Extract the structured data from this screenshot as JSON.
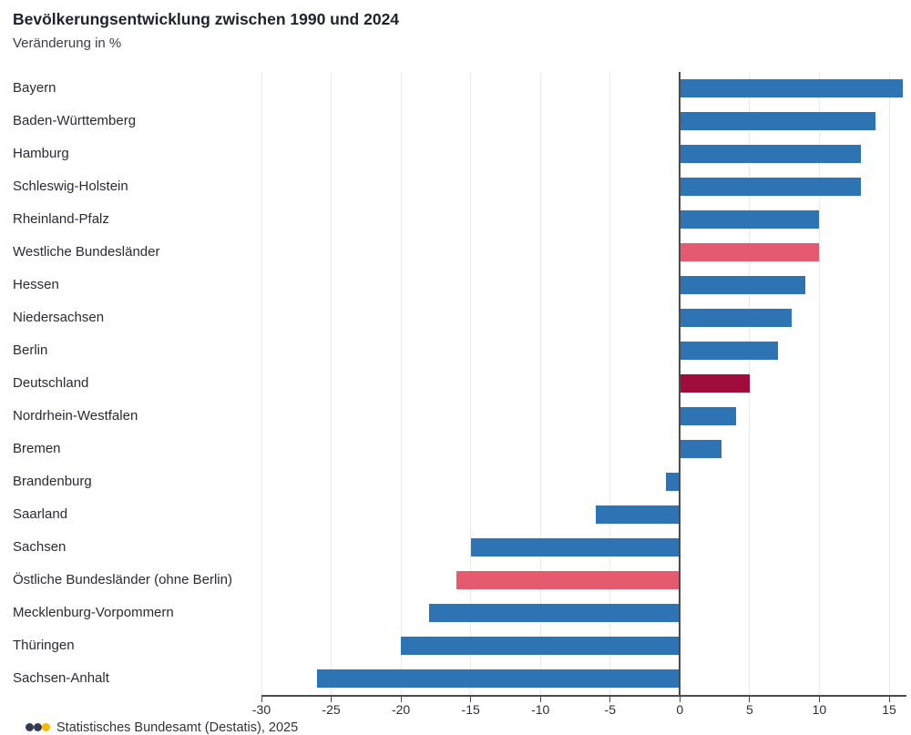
{
  "header": {
    "title": "Bevölkerungsentwicklung zwischen 1990 und 2024",
    "subtitle": "Veränderung in %"
  },
  "chart_data": {
    "type": "bar",
    "orientation": "horizontal",
    "title": "Bevölkerungsentwicklung zwischen 1990 und 2024",
    "subtitle": "Veränderung in %",
    "xlabel": "Veränderung in %",
    "ylabel": "",
    "xlim": [
      -30,
      15
    ],
    "x_ticks": [
      -30,
      -25,
      -20,
      -15,
      -10,
      -5,
      0,
      5,
      10,
      15
    ],
    "grid": "vertical-light",
    "legend": "none",
    "categories": [
      "Bayern",
      "Baden-Württemberg",
      "Hamburg",
      "Schleswig-Holstein",
      "Rheinland-Pfalz",
      "Westliche Bundesländer",
      "Hessen",
      "Niedersachsen",
      "Berlin",
      "Deutschland",
      "Nordrhein-Westfalen",
      "Bremen",
      "Brandenburg",
      "Saarland",
      "Sachsen",
      "Östliche Bundesländer (ohne Berlin)",
      "Mecklenburg-Vorpommern",
      "Thüringen",
      "Sachsen-Anhalt"
    ],
    "values": [
      16,
      14,
      13,
      13,
      10,
      10,
      9,
      8,
      7,
      5,
      4,
      3,
      -1,
      -6,
      -15,
      -16,
      -18,
      -20,
      -26
    ],
    "bar_colors": [
      "#2E74B4",
      "#2E74B4",
      "#2E74B4",
      "#2E74B4",
      "#2E74B4",
      "#E65A70",
      "#2E74B4",
      "#2E74B4",
      "#2E74B4",
      "#A00D3C",
      "#2E74B4",
      "#2E74B4",
      "#2E74B4",
      "#2E74B4",
      "#2E74B4",
      "#E65A70",
      "#2E74B4",
      "#2E74B4",
      "#2E74B4"
    ],
    "colors": {
      "state_bar": "#2E74B4",
      "aggregate_west_east_bar": "#E65A70",
      "germany_bar": "#A00D3C",
      "gridline": "#e9e9ec",
      "axis": "#4b4b4b"
    }
  },
  "footer": {
    "logo_dots": [
      "#333a56",
      "#333a56",
      "#f8b600"
    ],
    "source_text": "Statistisches Bundesamt (Destatis), 2025"
  }
}
